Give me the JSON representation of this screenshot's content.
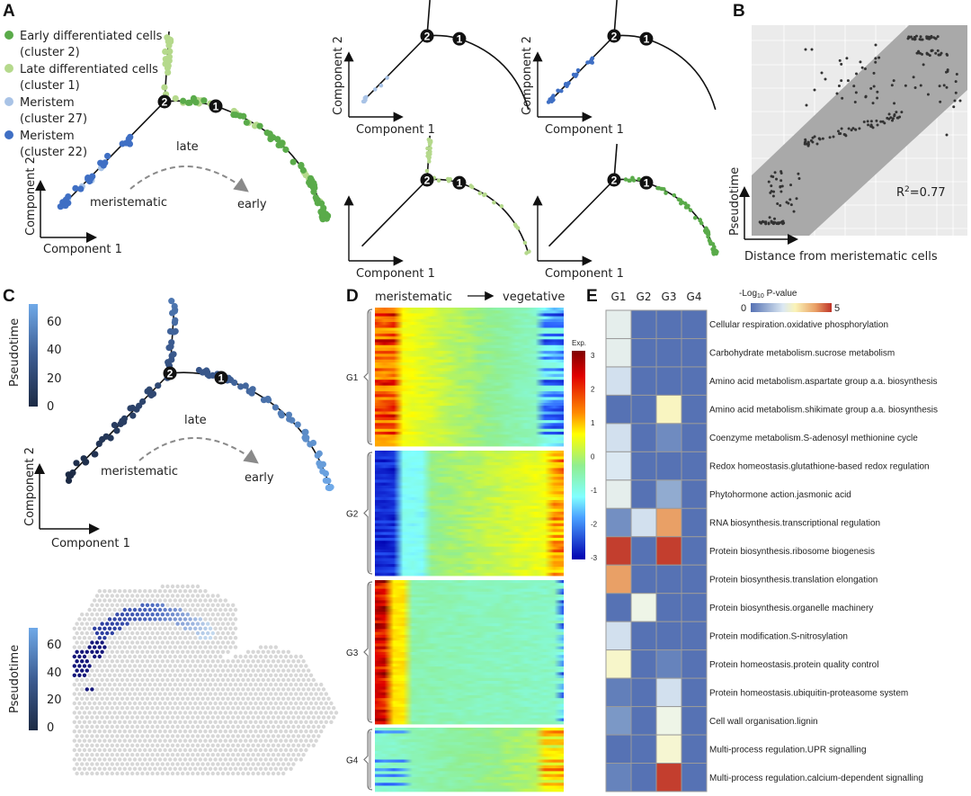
{
  "panels": {
    "a": {
      "label": "A",
      "legend": [
        {
          "line1": "Early differentiated cells",
          "line2": "(cluster 2)",
          "color": "#5aab4a"
        },
        {
          "line1": "Late differentiated cells",
          "line2": "(cluster 1)",
          "color": "#b5d98c"
        },
        {
          "line1": "Meristem",
          "line2": "(cluster 27)",
          "color": "#a9c3e6"
        },
        {
          "line1": "Meristem",
          "line2": "(cluster 22)",
          "color": "#3f6fc4"
        }
      ],
      "node_labels": [
        "2",
        "1"
      ],
      "annotations": {
        "late": "late",
        "meristematic": "meristematic",
        "early": "early"
      },
      "xlabel": "Component 1",
      "ylabel": "Component 2"
    },
    "b": {
      "label": "B",
      "xlabel": "Distance from meristematic cells",
      "ylabel": "Pseudotime",
      "r2_prefix": "R",
      "r2_sup": "2",
      "r2_value": "=0.77"
    },
    "c": {
      "label": "C",
      "colorbar_title": "Pseudotime",
      "colorbar_ticks": [
        "60",
        "40",
        "20",
        "0"
      ],
      "colorbar_colors": [
        "#6fa9e8",
        "#1c2a44"
      ],
      "xlabel": "Component 1",
      "ylabel": "Component 2",
      "annotations": {
        "late": "late",
        "meristematic": "meristematic",
        "early": "early"
      },
      "node_labels": [
        "2",
        "1"
      ]
    },
    "d": {
      "label": "D",
      "header_left": "meristematic",
      "header_right": "vegetative",
      "groups": [
        "G1",
        "G2",
        "G3",
        "G4"
      ],
      "colorbar_title": "Exp.",
      "colorbar_ticks": [
        "3",
        "2",
        "1",
        "0",
        "-1",
        "-2",
        "-3"
      ]
    },
    "e": {
      "label": "E",
      "legend_title_prefix": "-Log",
      "legend_title_sub": "10",
      "legend_title_suffix": " P-value",
      "legend_min": "0",
      "legend_max": "5"
    }
  },
  "chart_data": [
    {
      "type": "heatmap",
      "panel": "E",
      "columns": [
        "G1",
        "G2",
        "G3",
        "G4"
      ],
      "rows": [
        "Cellular respiration.oxidative phosphorylation",
        "Carbohydrate metabolism.sucrose metabolism",
        "Amino acid metabolism.aspartate group a.a. biosynthesis",
        "Amino acid metabolism.shikimate group a.a. biosynthesis",
        "Coenzyme metabolism.S-adenosyl methionine cycle",
        "Redox homeostasis.glutathione-based redox regulation",
        "Phytohormone action.jasmonic acid",
        "RNA biosynthesis.transcriptional regulation",
        "Protein biosynthesis.ribosome biogenesis",
        "Protein biosynthesis.translation elongation",
        "Protein biosynthesis.organelle machinery",
        "Protein modification.S-nitrosylation",
        "Protein homeostasis.protein quality control",
        "Protein homeostasis.ubiquitin-proteasome system",
        "Cell wall organisation.lignin",
        "Multi-process regulation.UPR signalling",
        "Multi-process regulation.calcium-dependent signalling"
      ],
      "values": [
        [
          2.2,
          0,
          0,
          0
        ],
        [
          2.2,
          0,
          0,
          0
        ],
        [
          1.9,
          0,
          0,
          0
        ],
        [
          0,
          0,
          2.9,
          0
        ],
        [
          1.9,
          0,
          0.6,
          0
        ],
        [
          2.0,
          0,
          0,
          0
        ],
        [
          2.2,
          0,
          1.2,
          0
        ],
        [
          0.7,
          1.9,
          4.0,
          0
        ],
        [
          4.9,
          0,
          4.9,
          0
        ],
        [
          4.0,
          0,
          0,
          0
        ],
        [
          0,
          2.4,
          0,
          0
        ],
        [
          1.9,
          0,
          0,
          0
        ],
        [
          2.8,
          0,
          0.4,
          0
        ],
        [
          0.3,
          0,
          1.9,
          0
        ],
        [
          0.9,
          0,
          2.4,
          0
        ],
        [
          0,
          0,
          2.7,
          0
        ],
        [
          0.4,
          0,
          4.9,
          0
        ]
      ],
      "color_range": [
        0,
        5
      ],
      "colors": [
        "#5672b4",
        "#dbe8f2",
        "#faf4b8",
        "#bf3328"
      ]
    },
    {
      "type": "heatmap",
      "panel": "D",
      "groups": [
        "G1",
        "G2",
        "G3",
        "G4"
      ],
      "x_direction": [
        "meristematic",
        "vegetative"
      ],
      "color_range": [
        -3,
        3
      ],
      "colormap": "jet",
      "group_trend": {
        "G1": "high at meristematic, low at vegetative",
        "G2": "low at meristematic, high at vegetative",
        "G3": "very high at meristematic, near 0 afterwards",
        "G4": "low to moderate, rising sharply at vegetative"
      }
    },
    {
      "type": "scatter",
      "panel": "B",
      "xlabel": "Distance from meristematic cells",
      "ylabel": "Pseudotime",
      "annotation": "R2=0.77",
      "grid": true
    }
  ]
}
